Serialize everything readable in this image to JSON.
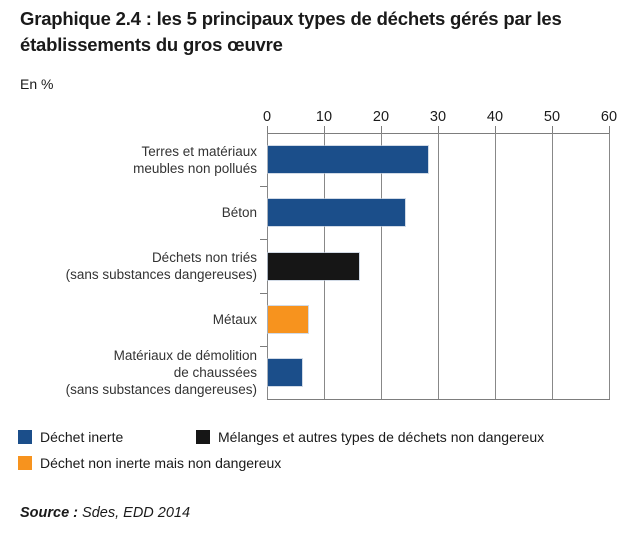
{
  "chart_data": {
    "type": "bar",
    "orientation": "horizontal",
    "title": "Graphique 2.4 : les 5 principaux types de déchets gérés par les établissements du gros œuvre",
    "unit_label": "En %",
    "categories": [
      "Terres et matériaux\nmeubles non pollués",
      "Béton",
      "Déchets non triés\n(sans substances dangereuses)",
      "Métaux",
      "Matériaux de démolition\nde chaussées\n(sans substances dangereuses)"
    ],
    "values": [
      28,
      24,
      16,
      7,
      6
    ],
    "bar_color_keys": [
      "inerte",
      "inerte",
      "melange",
      "non_inerte",
      "inerte"
    ],
    "colors": {
      "inerte": "#1B4E8A",
      "melange": "#161616",
      "non_inerte": "#F7931E"
    },
    "xlabel": "",
    "ylabel": "",
    "xlim": [
      0,
      60
    ],
    "x_ticks": [
      0,
      10,
      20,
      30,
      40,
      50,
      60
    ],
    "grid": true,
    "legend_position": "bottom",
    "legend": [
      {
        "label": "Déchet inerte",
        "color_key": "inerte"
      },
      {
        "label": "Mélanges et autres types de déchets non dangereux",
        "color_key": "melange"
      },
      {
        "label": "Déchet non inerte mais non dangereux",
        "color_key": "non_inerte"
      }
    ]
  },
  "source": {
    "prefix": "Source :",
    "text": " Sdes, EDD 2014"
  }
}
